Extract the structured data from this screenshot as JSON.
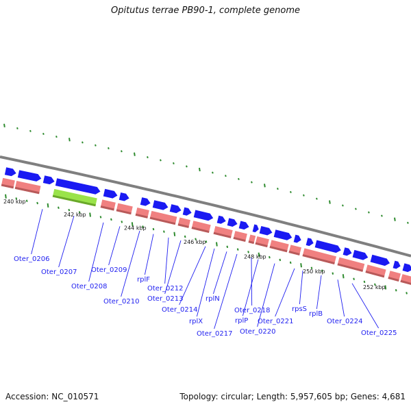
{
  "header": {
    "title": "Opitutus terrae PB90-1, complete genome"
  },
  "footer": {
    "accession": "Accession: NC_010571",
    "topology": "Topology: circular; Length: 5,957,605 bp; Genes: 4,681"
  },
  "colors": {
    "backbone": "#7f7f7f",
    "forward_gene": "#1a1af2",
    "reverse_gene": "#f08080",
    "highlight_gene": "#9ae34a",
    "tick": "#2e8b2e",
    "label": "#1d1df0"
  },
  "axis": {
    "kbp_labels": [
      "240 kbp",
      "242 kbp",
      "244 kbp",
      "246 kbp",
      "248 kbp",
      "250 kbp",
      "252 kbp"
    ]
  },
  "gene_labels": [
    "Oter_0206",
    "Oter_0207",
    "Oter_0208",
    "Oter_0209",
    "Oter_0210",
    "rplF",
    "Oter_0212",
    "Oter_0213",
    "Oter_0214",
    "rplX",
    "rplN",
    "Oter_0217",
    "Oter_0218",
    "rplP",
    "Oter_0220",
    "Oter_0221",
    "rpsS",
    "rplB",
    "Oter_0224",
    "Oter_0225"
  ]
}
